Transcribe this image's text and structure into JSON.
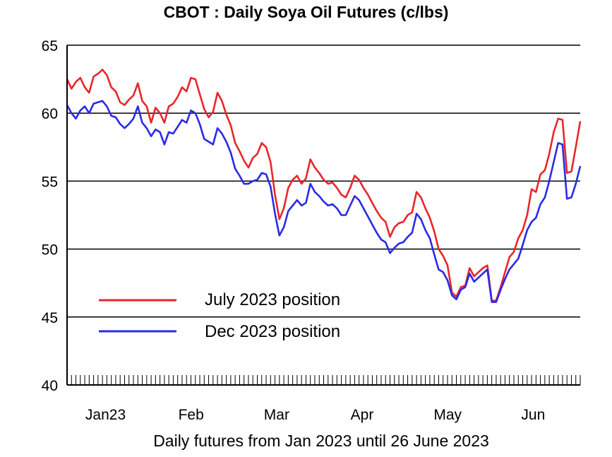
{
  "chart_data": {
    "type": "line",
    "title": "CBOT : Daily Soya Oil Futures (c/lbs)",
    "xlabel": "Daily futures from Jan 2023 until 26 June 2023",
    "ylabel": "",
    "ylim": [
      40,
      65
    ],
    "yticks": [
      "40",
      "45",
      "50",
      "55",
      "60",
      "65"
    ],
    "xcategories": [
      "Jan23",
      "Feb",
      "Mar",
      "Apr",
      "May",
      "Jun"
    ],
    "grid": true,
    "legend_position": "lower-left",
    "series": [
      {
        "name": "July 2023 position",
        "color": "#e8262a",
        "values": [
          62.5,
          61.8,
          62.3,
          62.6,
          61.9,
          61.5,
          62.7,
          62.9,
          63.2,
          62.8,
          61.9,
          61.6,
          60.8,
          60.6,
          61.0,
          61.3,
          62.2,
          60.9,
          60.5,
          59.3,
          60.4,
          60.0,
          59.3,
          60.5,
          60.7,
          61.2,
          61.9,
          61.6,
          62.6,
          62.5,
          61.4,
          60.3,
          59.7,
          60.1,
          61.5,
          60.9,
          59.9,
          59.1,
          57.8,
          57.2,
          56.5,
          56.0,
          56.7,
          57.0,
          57.8,
          57.5,
          56.4,
          54.0,
          52.2,
          53.0,
          54.5,
          55.1,
          55.4,
          54.8,
          55.2,
          56.6,
          56.0,
          55.6,
          55.1,
          54.8,
          54.9,
          54.5,
          54.0,
          53.8,
          54.5,
          55.4,
          55.1,
          54.5,
          54.0,
          53.4,
          52.8,
          52.3,
          52.0,
          50.9,
          51.6,
          51.9,
          52.0,
          52.5,
          52.7,
          54.2,
          53.8,
          53.0,
          52.3,
          51.3,
          50.0,
          49.5,
          48.8,
          46.8,
          46.5,
          47.2,
          47.3,
          48.6,
          48.0,
          48.3,
          48.6,
          48.8,
          46.2,
          46.2,
          47.2,
          48.3,
          49.4,
          49.8,
          50.8,
          51.4,
          52.5,
          54.4,
          54.2,
          55.5,
          55.8,
          57.0,
          58.6,
          59.6,
          59.5,
          55.6,
          55.7,
          57.5,
          59.4
        ]
      },
      {
        "name": "Dec 2023 position",
        "color": "#2a2ae6",
        "values": [
          60.6,
          60.0,
          59.6,
          60.2,
          60.5,
          60.0,
          60.7,
          60.8,
          60.9,
          60.5,
          59.8,
          59.7,
          59.2,
          58.9,
          59.2,
          59.6,
          60.5,
          59.3,
          58.9,
          58.3,
          58.8,
          58.6,
          57.7,
          58.6,
          58.5,
          59.0,
          59.5,
          59.3,
          60.2,
          60.0,
          59.2,
          58.1,
          57.9,
          57.7,
          58.9,
          58.5,
          57.9,
          57.1,
          55.9,
          55.4,
          54.8,
          54.8,
          55.0,
          55.1,
          55.6,
          55.5,
          54.6,
          52.6,
          51.0,
          51.6,
          52.8,
          53.2,
          53.6,
          53.2,
          53.4,
          54.8,
          54.2,
          53.9,
          53.5,
          53.2,
          53.3,
          53.0,
          52.5,
          52.5,
          53.2,
          53.9,
          53.6,
          53.0,
          52.4,
          51.8,
          51.2,
          50.7,
          50.5,
          49.7,
          50.1,
          50.4,
          50.5,
          50.9,
          51.2,
          52.6,
          52.2,
          51.4,
          50.8,
          49.6,
          48.5,
          48.3,
          47.7,
          46.6,
          46.3,
          47.0,
          47.2,
          48.2,
          47.6,
          47.9,
          48.2,
          48.5,
          46.1,
          46.1,
          47.0,
          47.8,
          48.5,
          48.9,
          49.3,
          50.3,
          51.4,
          52.0,
          52.3,
          53.3,
          53.8,
          55.0,
          56.4,
          57.8,
          57.7,
          53.7,
          53.8,
          54.8,
          56.1
        ]
      }
    ]
  }
}
